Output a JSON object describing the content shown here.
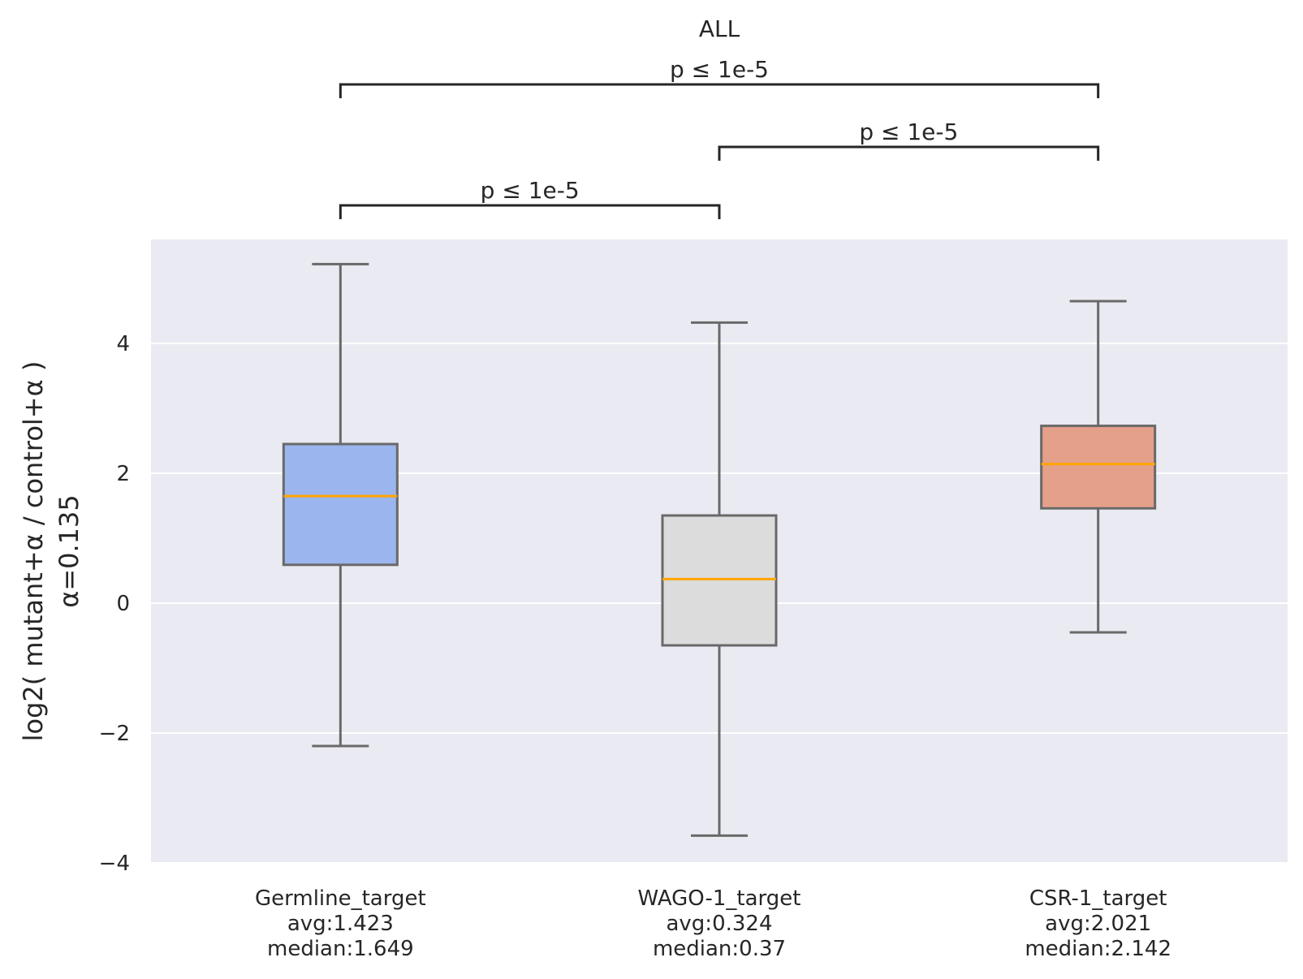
{
  "chart_data": {
    "type": "box",
    "title": "ALL",
    "ylabel_line1": "log2( mutant+α / control+α )",
    "ylabel_line2": "α=0.135",
    "ylim": [
      -4,
      5.6
    ],
    "yticks": [
      -4,
      -2,
      0,
      2,
      4
    ],
    "ytick_labels": [
      "−4",
      "−2",
      "0",
      "2",
      "4"
    ],
    "grid": true,
    "categories": [
      {
        "name": "Germline_target",
        "avg_label": "avg:1.423",
        "median_label": "median:1.649",
        "whisker_low": -2.2,
        "q1": 0.59,
        "median": 1.649,
        "q3": 2.45,
        "whisker_high": 5.22,
        "color": "#9bb5ee"
      },
      {
        "name": "WAGO-1_target",
        "avg_label": "avg:0.324",
        "median_label": "median:0.37",
        "whisker_low": -3.58,
        "q1": -0.65,
        "median": 0.37,
        "q3": 1.35,
        "whisker_high": 4.32,
        "color": "#dcdcdc"
      },
      {
        "name": "CSR-1_target",
        "avg_label": "avg:2.021",
        "median_label": "median:2.142",
        "whisker_low": -0.45,
        "q1": 1.46,
        "median": 2.142,
        "q3": 2.73,
        "whisker_high": 4.65,
        "color": "#e5a08a"
      }
    ],
    "box_edge_color": "#696969",
    "median_color": "#ffa500",
    "annotations": [
      {
        "from": 0,
        "to": 1,
        "level": 0,
        "text": "p ≤ 1e-5"
      },
      {
        "from": 1,
        "to": 2,
        "level": 1,
        "text": "p ≤ 1e-5"
      },
      {
        "from": 0,
        "to": 2,
        "level": 2,
        "text": "p ≤ 1e-5"
      }
    ]
  }
}
